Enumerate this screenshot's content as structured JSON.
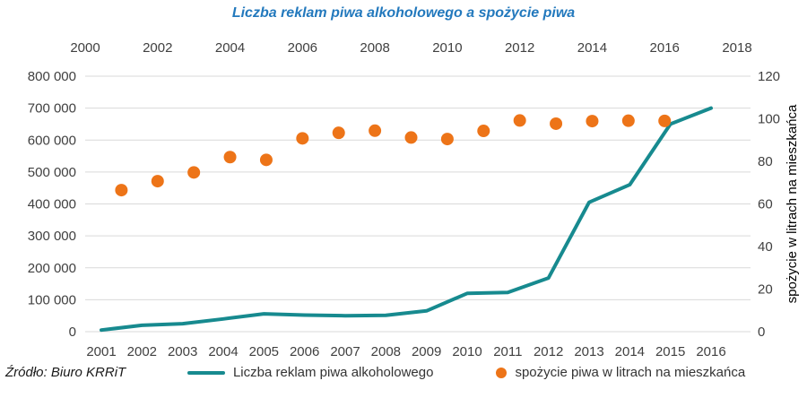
{
  "chart_data": {
    "type": "line+scatter",
    "title": "Liczba reklam piwa alkoholowego a spożycie piwa",
    "title_color": "#2379bd",
    "source": "Źródło: Biuro KRRiT",
    "grid": "horizontal",
    "grid_color": "#d9d9d9",
    "axis_text_color": "#404040",
    "legend_position": "bottom",
    "years": [
      2001,
      2002,
      2003,
      2004,
      2005,
      2006,
      2007,
      2008,
      2009,
      2010,
      2011,
      2012,
      2013,
      2014,
      2015,
      2016
    ],
    "series": [
      {
        "name": "Liczba reklam piwa alkoholowego",
        "type": "line",
        "axis": "left",
        "x_axis": "bottom",
        "color": "#178a8f",
        "values": [
          5000,
          20000,
          25000,
          40000,
          56000,
          52000,
          50000,
          51000,
          65000,
          120000,
          123000,
          168000,
          405000,
          460000,
          650000,
          700000
        ]
      },
      {
        "name": "spożycie piwa w litrach na mieszkańca",
        "type": "scatter",
        "axis": "right",
        "x_axis": "top",
        "color": "#ed7418",
        "values": [
          66.5,
          70.7,
          74.8,
          82,
          80.7,
          90.8,
          93.4,
          94.4,
          91.2,
          90.5,
          94.3,
          99.2,
          97.7,
          98.9,
          99.1,
          99
        ]
      }
    ],
    "left_axis": {
      "min": 0,
      "max": 800000,
      "tick_step": 100000,
      "tick_labels": [
        "0",
        "100 000",
        "200 000",
        "300 000",
        "400 000",
        "500 000",
        "600 000",
        "700 000",
        "800 000"
      ]
    },
    "right_axis": {
      "min": 0,
      "max": 120,
      "tick_step": 20,
      "ticks": [
        0,
        20,
        40,
        60,
        80,
        100,
        120
      ],
      "title": "spożycie w litrach na mieszkańca"
    },
    "top_axis": {
      "min": 2000,
      "max": 2018,
      "tick_step": 2,
      "ticks": [
        2000,
        2002,
        2004,
        2006,
        2008,
        2010,
        2012,
        2014,
        2016,
        2018
      ]
    },
    "bottom_axis": {
      "categories": [
        "2001",
        "2002",
        "2003",
        "2004",
        "2005",
        "2006",
        "2007",
        "2008",
        "2009",
        "2010",
        "2011",
        "2012",
        "2013",
        "2014",
        "2015",
        "2016"
      ]
    }
  }
}
